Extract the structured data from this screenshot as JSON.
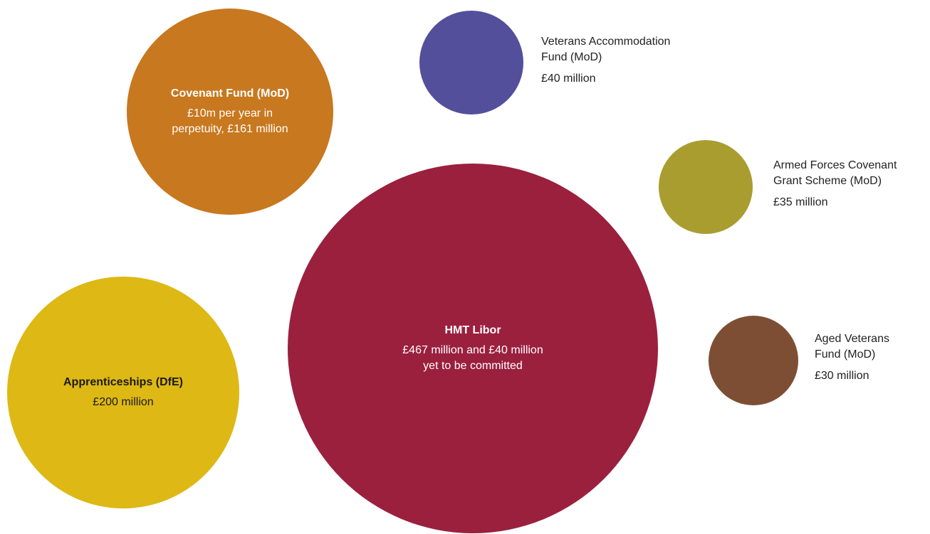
{
  "chart_data": {
    "type": "bubble",
    "title": "",
    "items": [
      {
        "name_lines": [
          "Covenant Fund (MoD)"
        ],
        "value_lines": [
          "£10m per year in",
          "perpetuity, £161 million"
        ],
        "value": 161,
        "color": "#C8781F",
        "label_placement": "inside",
        "text_color": "#FFFFFF"
      },
      {
        "name_lines": [
          "Veterans Accommodation",
          "Fund (MoD)"
        ],
        "value_lines": [
          "£40 million"
        ],
        "value": 40,
        "color": "#534F9B",
        "label_placement": "right"
      },
      {
        "name_lines": [
          "Armed Forces Covenant",
          "Grant Scheme (MoD)"
        ],
        "value_lines": [
          "£35 million"
        ],
        "value": 35,
        "color": "#A99D30",
        "label_placement": "right"
      },
      {
        "name_lines": [
          "HMT Libor"
        ],
        "value_lines": [
          "£467 million and £40 million",
          "yet to be committed"
        ],
        "value": 507,
        "color": "#9A203E",
        "label_placement": "inside",
        "text_color": "#FFFFFF"
      },
      {
        "name_lines": [
          "Apprenticeships (DfE)"
        ],
        "value_lines": [
          "£200 million"
        ],
        "value": 200,
        "color": "#DEB814",
        "label_placement": "inside",
        "text_color": "#1A1A1A"
      },
      {
        "name_lines": [
          "Aged Veterans",
          "Fund (MoD)"
        ],
        "value_lines": [
          "£30 million"
        ],
        "value": 30,
        "color": "#7E4E34",
        "label_placement": "right"
      }
    ]
  }
}
